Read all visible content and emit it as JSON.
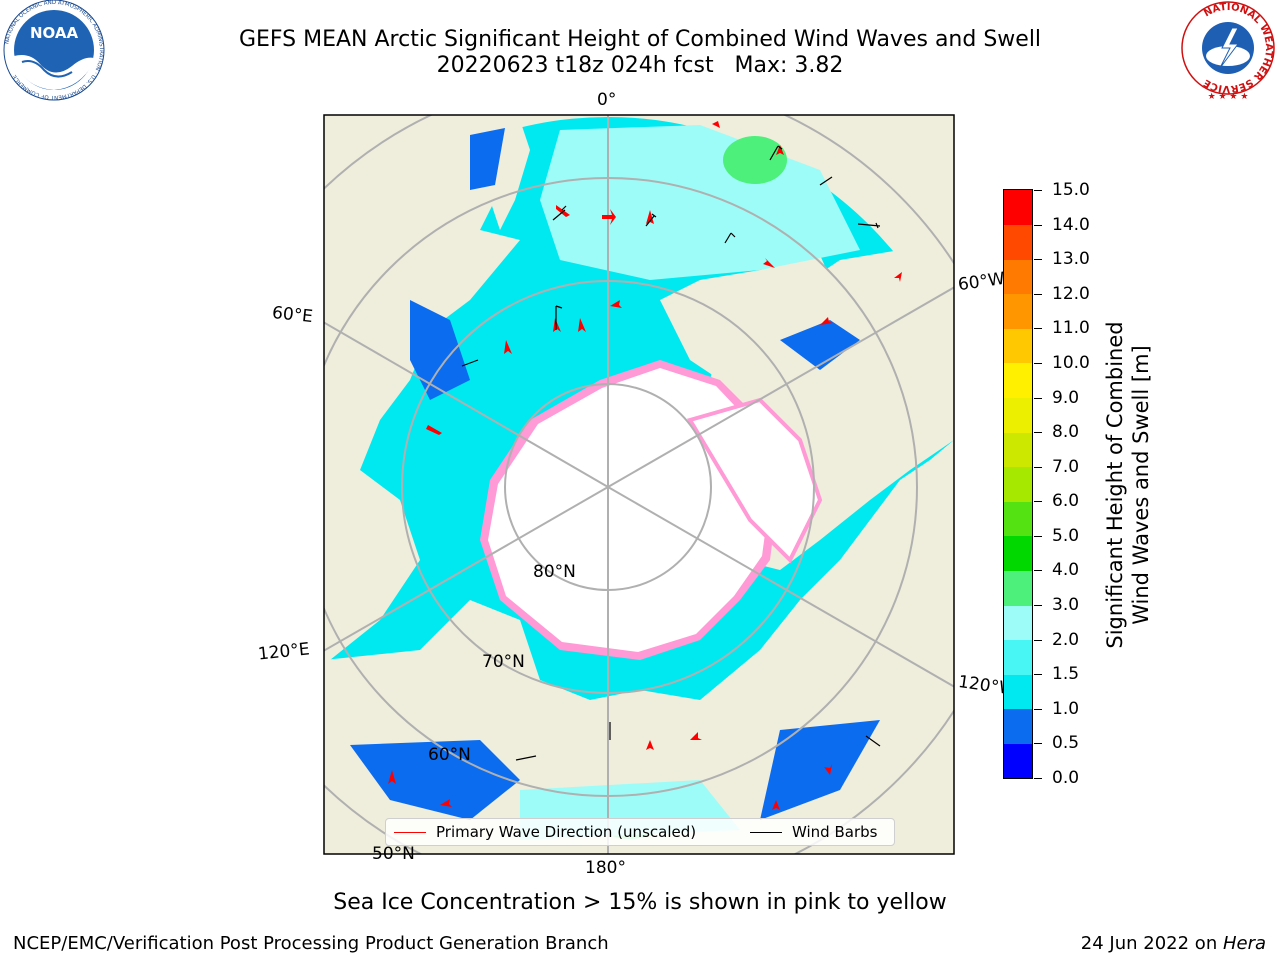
{
  "title": {
    "line1": "GEFS MEAN Arctic Significant Height of Combined Wind Waves and Swell",
    "line2": "20220623 t18z 024h fcst   Max: 3.82"
  },
  "logos": {
    "noaa_text": "NOAA",
    "noaa_ring_text": "NATIONAL OCEANIC AND ATMOSPHERIC ADMINISTRATION · U.S. DEPARTMENT OF COMMERCE",
    "nws_ring_text": "NATIONAL WEATHER SERVICE"
  },
  "map": {
    "projection": "north-polar-stereographic",
    "labels": {
      "lon_0": "0°",
      "lon_60w": "60°W",
      "lon_60e": "60°E",
      "lon_120e": "120°E",
      "lon_120w": "120°W",
      "lon_180": "180°",
      "lat_80": "80°N",
      "lat_70": "70°N",
      "lat_60": "60°N",
      "lat_50": "50°N"
    },
    "colors": {
      "ocean_land": "#efeedc",
      "ice": "#ffffff",
      "graticule": "#b0b0b0",
      "wave_arrow": "#ff0000"
    }
  },
  "colorbar": {
    "title_line1": "Significant Height of Combined",
    "title_line2": "Wind Waves and Swell [m]",
    "range": [
      0,
      15
    ],
    "ticks": [
      "0.0",
      "0.5",
      "1.0",
      "1.5",
      "2.0",
      "3.0",
      "4.0",
      "5.0",
      "6.0",
      "7.0",
      "8.0",
      "9.0",
      "10.0",
      "11.0",
      "12.0",
      "13.0",
      "14.0",
      "15.0"
    ],
    "colors": [
      "#0000ff",
      "#0b6cf0",
      "#00e9f0",
      "#48f6f4",
      "#9dfcf8",
      "#4cf07a",
      "#00d800",
      "#55e212",
      "#a6e800",
      "#cde800",
      "#ecf000",
      "#fff000",
      "#ffc800",
      "#ff9600",
      "#ff7a00",
      "#ff4800",
      "#ff0000"
    ]
  },
  "legend": {
    "items": [
      {
        "label": "Primary Wave Direction (unscaled)",
        "color": "#ff0000"
      },
      {
        "label": "Wind Barbs",
        "color": "#000000"
      }
    ]
  },
  "caption": "Sea Ice Concentration > 15% is shown in pink to yellow",
  "footer": {
    "left": "NCEP/EMC/Verification Post Processing Product Generation Branch",
    "right_date": "24 Jun 2022 on ",
    "right_system": "Hera"
  }
}
